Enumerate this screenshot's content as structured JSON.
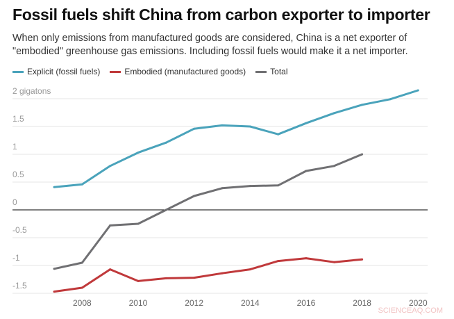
{
  "title": "Fossil fuels shift China from carbon exporter to importer",
  "subtitle": "When only emissions from manufactured goods are considered, China is a net exporter of \"embodied\" greenhouse gas emissions. Including fossil fuels would make it a net importer.",
  "watermark": "SCIENCEAQ.COM",
  "chart_data": {
    "type": "line",
    "title": "Fossil fuels shift China from carbon exporter to importer",
    "ylabel": "gigatons",
    "ylim": [
      -1.5,
      2
    ],
    "xlim": [
      2007,
      2020
    ],
    "grid": true,
    "legend": "top-left",
    "xticks": [
      "2008",
      "2010",
      "2012",
      "2014",
      "2016",
      "2018",
      "2020"
    ],
    "yticks": [
      {
        "v": 2,
        "label": "2 gigatons"
      },
      {
        "v": 1.5,
        "label": "1.5"
      },
      {
        "v": 1,
        "label": "1"
      },
      {
        "v": 0.5,
        "label": "0.5"
      },
      {
        "v": 0,
        "label": "0"
      },
      {
        "v": -0.5,
        "label": "-0.5"
      },
      {
        "v": -1,
        "label": "-1"
      },
      {
        "v": -1.5,
        "label": "-1.5"
      }
    ],
    "series": [
      {
        "name": "Explicit (fossil fuels)",
        "color": "#4aa3bb",
        "x": [
          2007,
          2008,
          2009,
          2010,
          2011,
          2012,
          2013,
          2014,
          2015,
          2016,
          2017,
          2018,
          2019,
          2020
        ],
        "values": [
          0.41,
          0.46,
          0.79,
          1.03,
          1.21,
          1.46,
          1.52,
          1.5,
          1.36,
          1.56,
          1.74,
          1.89,
          1.99,
          2.15
        ]
      },
      {
        "name": "Embodied (manufactured goods)",
        "color": "#c0393b",
        "x": [
          2007,
          2008,
          2009,
          2010,
          2011,
          2012,
          2013,
          2014,
          2015,
          2016,
          2017,
          2018
        ],
        "values": [
          -1.47,
          -1.4,
          -1.07,
          -1.28,
          -1.23,
          -1.22,
          -1.14,
          -1.07,
          -0.92,
          -0.87,
          -0.94,
          -0.89
        ]
      },
      {
        "name": "Total",
        "color": "#707073",
        "x": [
          2007,
          2008,
          2009,
          2010,
          2011,
          2012,
          2013,
          2014,
          2015,
          2016,
          2017,
          2018
        ],
        "values": [
          -1.06,
          -0.95,
          -0.28,
          -0.25,
          0.0,
          0.25,
          0.39,
          0.43,
          0.44,
          0.7,
          0.79,
          1.0
        ]
      }
    ]
  }
}
